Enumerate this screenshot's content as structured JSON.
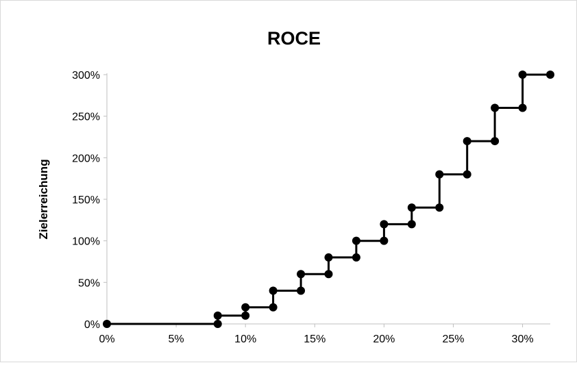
{
  "chart_data": {
    "type": "line",
    "title": "ROCE",
    "xlabel": "",
    "ylabel": "Zielerreichung",
    "xlim": [
      0,
      0.32
    ],
    "ylim": [
      0,
      3.0
    ],
    "x_ticks": [
      0,
      0.05,
      0.1,
      0.15,
      0.2,
      0.25,
      0.3
    ],
    "x_tick_labels": [
      "0%",
      "5%",
      "10%",
      "15%",
      "20%",
      "25%",
      "30%"
    ],
    "y_ticks": [
      0,
      0.5,
      1.0,
      1.5,
      2.0,
      2.5,
      3.0
    ],
    "y_tick_labels": [
      "0%",
      "50%",
      "100%",
      "150%",
      "200%",
      "250%",
      "300%"
    ],
    "grid": false,
    "legend": "none",
    "series": [
      {
        "color": "#000000",
        "marker": "circle",
        "x": [
          0,
          0.08,
          0.08,
          0.1,
          0.1,
          0.12,
          0.12,
          0.14,
          0.14,
          0.16,
          0.16,
          0.18,
          0.18,
          0.2,
          0.2,
          0.22,
          0.22,
          0.24,
          0.24,
          0.26,
          0.26,
          0.28,
          0.28,
          0.3,
          0.3,
          0.32
        ],
        "y": [
          0,
          0,
          0.1,
          0.1,
          0.2,
          0.2,
          0.4,
          0.4,
          0.6,
          0.6,
          0.8,
          0.8,
          1.0,
          1.0,
          1.2,
          1.2,
          1.4,
          1.4,
          1.8,
          1.8,
          2.2,
          2.2,
          2.6,
          2.6,
          3.0,
          3.0
        ]
      }
    ]
  }
}
